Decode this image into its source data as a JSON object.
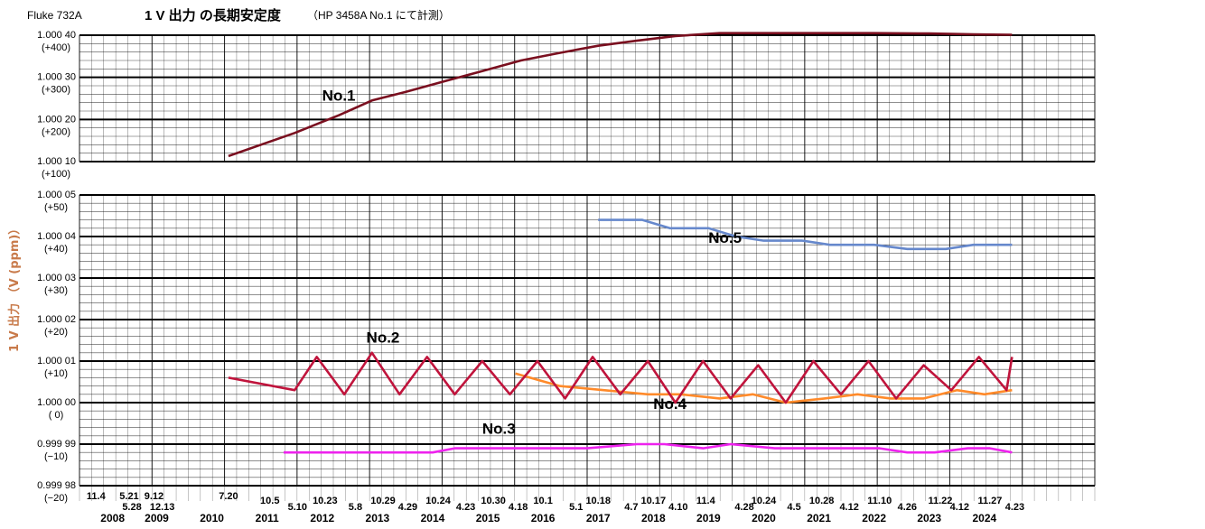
{
  "title": {
    "model": "Fluke 732A",
    "main": "1 V 出力 の長期安定度",
    "note": "（HP 3458A No.1 にて計測）"
  },
  "ylabel": "1 V 出力 （V (ppm)）",
  "colors": {
    "no1": "#7a0f1f",
    "no2": "#c0143c",
    "no3": "#ee22ee",
    "no4": "#ff8a2a",
    "no5": "#6688cc",
    "ylabel": "#c87a4a",
    "grid": "#000000"
  },
  "chart_data": [
    {
      "type": "line",
      "panel": "upper",
      "ylim": [
        100,
        400
      ],
      "yticks": [
        {
          "value": 400,
          "label": "1.000 40",
          "sub": "(+400)"
        },
        {
          "value": 300,
          "label": "1.000 30",
          "sub": "(+300)"
        },
        {
          "value": 200,
          "label": "1.000 20",
          "sub": "(+200)"
        },
        {
          "value": 100,
          "label": "1.000 10",
          "sub": "(+100)"
        }
      ],
      "series": [
        {
          "name": "No.1",
          "color_key": "no1",
          "x": [
            2010.3,
            2011.5,
            2012.3,
            2012.9,
            2013.5,
            2014.2,
            2014.9,
            2015.6,
            2016.3,
            2017.0,
            2017.7,
            2018.4,
            2019.2,
            2020.0,
            2021.0,
            2022.0,
            2023.0,
            2023.8,
            2024.5
          ],
          "y": [
            113,
            168,
            210,
            245,
            265,
            290,
            315,
            340,
            358,
            375,
            387,
            398,
            405,
            405,
            405,
            405,
            404,
            402,
            401
          ]
        }
      ]
    },
    {
      "type": "line",
      "panel": "lower",
      "ylim": [
        -20,
        50
      ],
      "yticks": [
        {
          "value": 50,
          "label": "1.000 05",
          "sub": "(+50)"
        },
        {
          "value": 40,
          "label": "1.000 04",
          "sub": "(+40)"
        },
        {
          "value": 30,
          "label": "1.000 03",
          "sub": "(+30)"
        },
        {
          "value": 20,
          "label": "1.000 02",
          "sub": "(+20)"
        },
        {
          "value": 10,
          "label": "1.000 01",
          "sub": "(+10)"
        },
        {
          "value": 0,
          "label": "1.000 00",
          "sub": "(  0)"
        },
        {
          "value": -10,
          "label": "0.999 99",
          "sub": "(−10)"
        },
        {
          "value": -20,
          "label": "0.999 98",
          "sub": "(−20)"
        }
      ],
      "series": [
        {
          "name": "No.5",
          "color_key": "no5",
          "x": [
            2017.0,
            2017.8,
            2018.3,
            2019.0,
            2019.5,
            2020.0,
            2020.7,
            2021.2,
            2022.0,
            2022.6,
            2023.3,
            2023.8,
            2024.5
          ],
          "y": [
            44,
            44,
            42,
            42,
            40,
            39,
            39,
            38,
            38,
            37,
            37,
            38,
            38
          ]
        },
        {
          "name": "No.4",
          "color_key": "no4",
          "x": [
            2015.5,
            2016.3,
            2017.1,
            2017.9,
            2018.5,
            2019.2,
            2019.8,
            2020.4,
            2021.1,
            2021.7,
            2022.3,
            2022.9,
            2023.5,
            2024.0,
            2024.5
          ],
          "y": [
            7,
            4,
            3,
            2,
            2,
            1,
            2,
            0,
            1,
            2,
            1,
            1,
            3,
            2,
            3
          ]
        },
        {
          "name": "No.2",
          "color_key": "no2",
          "x": [
            2010.3,
            2011.5,
            2011.9,
            2012.4,
            2012.9,
            2013.4,
            2013.9,
            2014.4,
            2014.9,
            2015.4,
            2015.9,
            2016.4,
            2016.9,
            2017.4,
            2017.9,
            2018.4,
            2018.9,
            2019.4,
            2019.9,
            2020.4,
            2020.9,
            2021.4,
            2021.9,
            2022.4,
            2022.9,
            2023.4,
            2023.9,
            2024.4,
            2024.5
          ],
          "y": [
            6,
            3,
            11,
            2,
            12,
            2,
            11,
            2,
            10,
            2,
            10,
            1,
            11,
            2,
            10,
            0,
            10,
            1,
            9,
            0,
            10,
            2,
            10,
            1,
            9,
            3,
            11,
            3,
            11
          ]
        },
        {
          "name": "No.3",
          "color_key": "no3",
          "x": [
            2011.3,
            2012.2,
            2013.2,
            2014.0,
            2014.4,
            2015.2,
            2016.2,
            2016.8,
            2017.7,
            2018.2,
            2018.9,
            2019.4,
            2020.2,
            2021.2,
            2022.1,
            2022.6,
            2023.1,
            2023.7,
            2024.1,
            2024.5
          ],
          "y": [
            -12,
            -12,
            -12,
            -12,
            -11,
            -11,
            -11,
            -11,
            -10,
            -10,
            -11,
            -10,
            -11,
            -11,
            -11,
            -12,
            -12,
            -11,
            -11,
            -12
          ]
        }
      ],
      "series_labels": [
        {
          "text": "No.5",
          "x": 2019.3,
          "y": 38.5
        },
        {
          "text": "No.4",
          "x": 2018.3,
          "y": -1.5
        },
        {
          "text": "No.2",
          "x": 2013.1,
          "y": 14.5
        },
        {
          "text": "No.3",
          "x": 2015.2,
          "y": -7.5
        }
      ]
    }
  ],
  "upper_series_label": {
    "text": "No.1",
    "x": 2012.3,
    "y": 245
  },
  "xaxis": {
    "years": [
      {
        "label": "2008",
        "x": 2008.2
      },
      {
        "label": "2009",
        "x": 2009.0
      },
      {
        "label": "2010",
        "x": 2010.0
      },
      {
        "label": "2011",
        "x": 2011.0
      },
      {
        "label": "2012",
        "x": 2012.0
      },
      {
        "label": "2013",
        "x": 2013.0
      },
      {
        "label": "2014",
        "x": 2014.0
      },
      {
        "label": "2015",
        "x": 2015.0
      },
      {
        "label": "2016",
        "x": 2016.0
      },
      {
        "label": "2017",
        "x": 2017.0
      },
      {
        "label": "2018",
        "x": 2018.0
      },
      {
        "label": "2019",
        "x": 2019.0
      },
      {
        "label": "2020",
        "x": 2020.0
      },
      {
        "label": "2021",
        "x": 2021.0
      },
      {
        "label": "2022",
        "x": 2022.0
      },
      {
        "label": "2023",
        "x": 2023.0
      },
      {
        "label": "2024",
        "x": 2024.0
      }
    ],
    "dates": [
      {
        "label": "11.4",
        "x": 2007.9,
        "row": 1
      },
      {
        "label": "5.21",
        "x": 2008.5,
        "row": 1
      },
      {
        "label": "9.12",
        "x": 2008.95,
        "row": 1
      },
      {
        "label": "5.28",
        "x": 2008.55,
        "row": 2
      },
      {
        "label": "12.13",
        "x": 2009.1,
        "row": 2
      },
      {
        "label": "7.20",
        "x": 2010.3,
        "row": 1
      },
      {
        "label": "10.5",
        "x": 2011.05,
        "row": 3
      },
      {
        "label": "5.10",
        "x": 2011.55,
        "row": 2
      },
      {
        "label": "10.23",
        "x": 2012.05,
        "row": 3
      },
      {
        "label": "5.8",
        "x": 2012.6,
        "row": 2
      },
      {
        "label": "10.29",
        "x": 2013.1,
        "row": 3
      },
      {
        "label": "4.29",
        "x": 2013.55,
        "row": 2
      },
      {
        "label": "10.24",
        "x": 2014.1,
        "row": 3
      },
      {
        "label": "4.23",
        "x": 2014.6,
        "row": 2
      },
      {
        "label": "10.30",
        "x": 2015.1,
        "row": 3
      },
      {
        "label": "4.18",
        "x": 2015.55,
        "row": 2
      },
      {
        "label": "10.1",
        "x": 2016.0,
        "row": 3
      },
      {
        "label": "5.1",
        "x": 2016.6,
        "row": 2
      },
      {
        "label": "10.18",
        "x": 2017.0,
        "row": 3
      },
      {
        "label": "4.7",
        "x": 2017.6,
        "row": 2
      },
      {
        "label": "10.17",
        "x": 2018.0,
        "row": 3
      },
      {
        "label": "4.10",
        "x": 2018.45,
        "row": 2
      },
      {
        "label": "11.4",
        "x": 2018.95,
        "row": 3
      },
      {
        "label": "4.28",
        "x": 2019.65,
        "row": 2
      },
      {
        "label": "10.24",
        "x": 2020.0,
        "row": 3
      },
      {
        "label": "4.5",
        "x": 2020.55,
        "row": 2
      },
      {
        "label": "10.28",
        "x": 2021.05,
        "row": 3
      },
      {
        "label": "4.12",
        "x": 2021.55,
        "row": 2
      },
      {
        "label": "11.10",
        "x": 2022.1,
        "row": 3
      },
      {
        "label": "4.26",
        "x": 2022.6,
        "row": 2
      },
      {
        "label": "11.22",
        "x": 2023.2,
        "row": 3
      },
      {
        "label": "4.12",
        "x": 2023.55,
        "row": 2
      },
      {
        "label": "11.27",
        "x": 2024.1,
        "row": 3
      },
      {
        "label": "4.23",
        "x": 2024.55,
        "row": 2
      }
    ]
  }
}
